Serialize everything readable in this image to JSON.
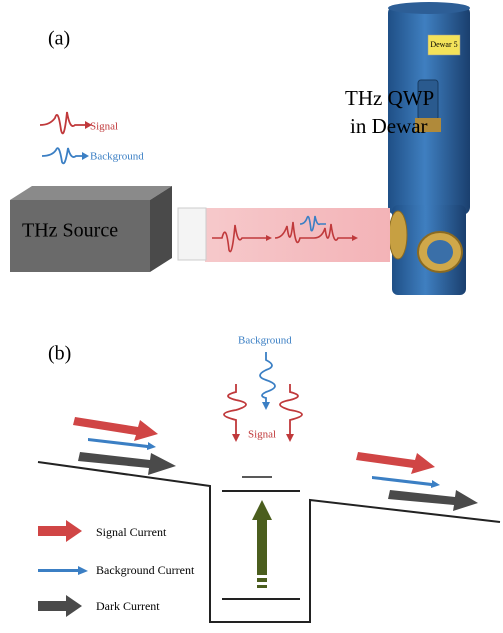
{
  "panel_a": {
    "label": "(a)",
    "legend": {
      "signal": "Signal",
      "background": "Background"
    },
    "source": "THz Source",
    "detector": [
      "THz QWP",
      "in Dewar"
    ],
    "dewar_tag": "Dewar 5"
  },
  "panel_b": {
    "label": "(b)",
    "background": "Background",
    "signal": "Signal",
    "legend": [
      "Signal Current",
      "Background Current",
      "Dark Current"
    ]
  }
}
